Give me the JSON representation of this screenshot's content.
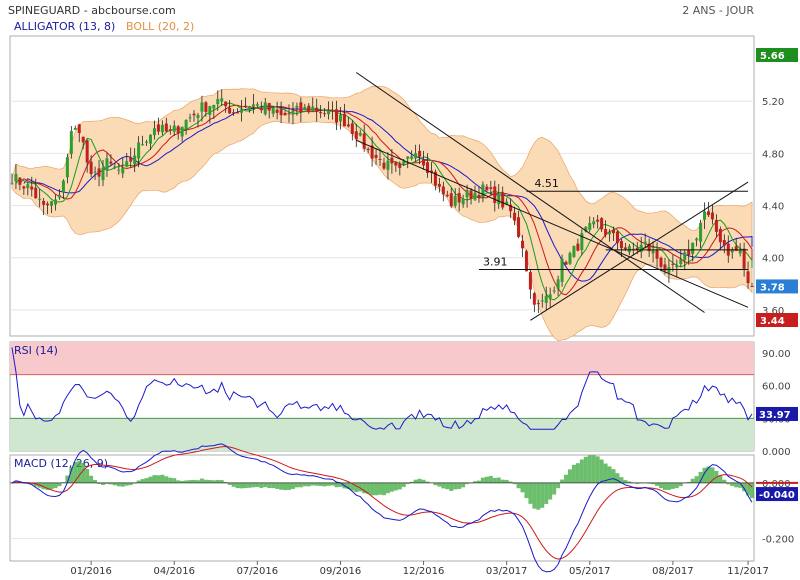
{
  "header": {
    "title": "SPINEGUARD - abcbourse.com",
    "period": "2 ANS - JOUR",
    "indicator1": "ALLIGATOR (13, 8)",
    "indicator2": "BOLL (20, 2)"
  },
  "colors": {
    "up": "#2e9e2e",
    "down": "#c0201e",
    "bollinger_fill": "#fbd9b3",
    "bollinger_line": "#e8a060",
    "alligator_blue": "#1a1acc",
    "alligator_red": "#cc1a1a",
    "alligator_green": "#1a9e1a",
    "rsi_overbought": "#f7c9cc",
    "rsi_oversold": "#cfe6cf",
    "macd_line": "#1a1acc",
    "signal_line": "#cc1a1a",
    "histogram": "#3aa83a",
    "last_price_badge": "#2a7fd4",
    "high_badge": "#1e8e1e",
    "low_badge": "#c81e1e",
    "macd_badge": "#1a1aaa"
  },
  "chart_data": [
    {
      "type": "candlestick",
      "name": "price",
      "ylim": [
        3.4,
        5.7
      ],
      "yticks": [
        "5.20",
        "4.80",
        "4.40",
        "4.00",
        "3.60"
      ],
      "ytick_values": [
        5.2,
        4.8,
        4.4,
        4.0,
        3.6
      ],
      "xticks": [
        "01/2016",
        "04/2016",
        "07/2016",
        "09/2016",
        "12/2016",
        "03/2017",
        "05/2017",
        "08/2017",
        "11/2017"
      ],
      "anchors": [
        [
          0,
          4.62
        ],
        [
          5,
          4.52
        ],
        [
          8,
          4.38
        ],
        [
          12,
          4.45
        ],
        [
          15,
          4.95
        ],
        [
          17,
          5.0
        ],
        [
          20,
          4.6
        ],
        [
          24,
          4.72
        ],
        [
          28,
          4.65
        ],
        [
          32,
          4.85
        ],
        [
          36,
          5.0
        ],
        [
          40,
          4.95
        ],
        [
          44,
          5.05
        ],
        [
          48,
          5.15
        ],
        [
          52,
          5.2
        ],
        [
          56,
          5.12
        ],
        [
          60,
          5.18
        ],
        [
          64,
          5.15
        ],
        [
          68,
          5.08
        ],
        [
          72,
          5.12
        ],
        [
          76,
          5.15
        ],
        [
          80,
          5.1
        ],
        [
          84,
          5.05
        ],
        [
          87,
          4.95
        ],
        [
          90,
          4.82
        ],
        [
          94,
          4.72
        ],
        [
          98,
          4.65
        ],
        [
          102,
          4.85
        ],
        [
          105,
          4.7
        ],
        [
          108,
          4.52
        ],
        [
          111,
          4.42
        ],
        [
          115,
          4.48
        ],
        [
          119,
          4.52
        ],
        [
          123,
          4.45
        ],
        [
          126,
          4.35
        ],
        [
          129,
          4.1
        ],
        [
          131,
          3.75
        ],
        [
          133,
          3.62
        ],
        [
          136,
          3.72
        ],
        [
          139,
          3.95
        ],
        [
          142,
          4.05
        ],
        [
          145,
          4.2
        ],
        [
          148,
          4.25
        ],
        [
          152,
          4.15
        ],
        [
          156,
          4.05
        ],
        [
          160,
          4.1
        ],
        [
          163,
          4.0
        ],
        [
          166,
          3.88
        ],
        [
          169,
          3.95
        ],
        [
          172,
          4.1
        ],
        [
          175,
          4.35
        ],
        [
          178,
          4.2
        ],
        [
          181,
          4.05
        ],
        [
          184,
          4.05
        ],
        [
          186,
          3.78
        ]
      ],
      "last": 3.78,
      "period_high": 5.66,
      "period_low": 3.44,
      "levels": [
        {
          "label": "4.51",
          "value": 4.51
        },
        {
          "label": "3.91",
          "value": 3.91
        }
      ],
      "trendlines": [
        [
          [
            87,
            5.42
          ],
          [
            175,
            3.58
          ]
        ],
        [
          [
            87,
            4.9
          ],
          [
            186,
            3.62
          ]
        ],
        [
          [
            131,
            3.52
          ],
          [
            186,
            4.58
          ]
        ],
        [
          [
            150,
            4.06
          ],
          [
            186,
            4.06
          ]
        ]
      ]
    },
    {
      "type": "line",
      "name": "RSI (14)",
      "ylim": [
        0,
        100
      ],
      "yticks": [
        "90.00",
        "60.00",
        "30.00",
        "0.000"
      ],
      "ytick_values": [
        90,
        60,
        30,
        0
      ],
      "overbought": 70,
      "oversold": 30,
      "last": "33.97"
    },
    {
      "type": "line",
      "name": "MACD (12, 26, 9)",
      "ylim": [
        -0.28,
        0.1
      ],
      "yticks": [
        "0.000",
        "-0.200"
      ],
      "ytick_values": [
        0.0,
        -0.2
      ],
      "last": "-0.040"
    }
  ],
  "badges": {
    "high": "5.66",
    "last": "3.78",
    "low": "3.44",
    "rsi": "33.97",
    "macd": "-0.040"
  }
}
